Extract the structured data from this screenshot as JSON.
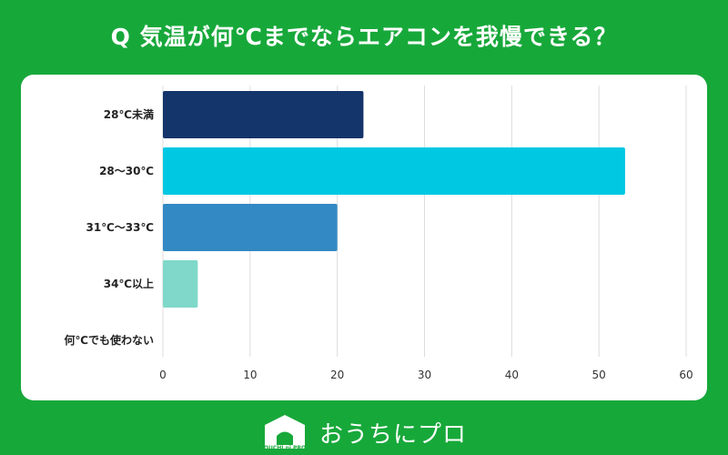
{
  "header": {
    "title": "Q 気温が何℃までならエアコンを我慢できる？"
  },
  "footer": {
    "brand_text": "おうちにプロ",
    "logo_small_text": "OUCHI ni PRO"
  },
  "colors": {
    "background": "#17a83a",
    "card": "#ffffff",
    "grid": "#dcdcdc"
  },
  "chart_data": {
    "type": "bar",
    "orientation": "horizontal",
    "title": "Q 気温が何℃までならエアコンを我慢できる？",
    "categories": [
      "28℃未満",
      "28～30℃",
      "31℃～33℃",
      "34℃以上",
      "何℃でも使わない"
    ],
    "values": [
      23,
      53,
      20,
      4,
      0
    ],
    "bar_colors": [
      "#14356b",
      "#00c8e3",
      "#3389c4",
      "#7fd8c9",
      "#cccccc"
    ],
    "xlim": [
      0,
      60
    ],
    "xticks": [
      0,
      10,
      20,
      30,
      40,
      50,
      60
    ],
    "grid": true,
    "legend": "none"
  }
}
